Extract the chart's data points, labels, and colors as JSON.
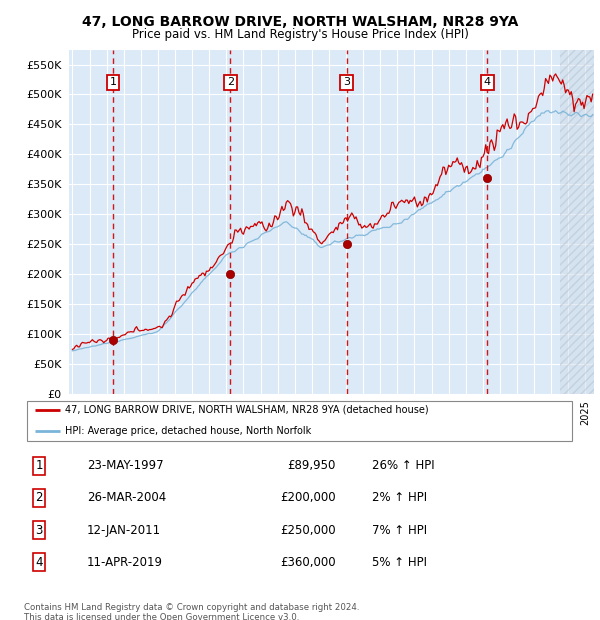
{
  "title": "47, LONG BARROW DRIVE, NORTH WALSHAM, NR28 9YA",
  "subtitle": "Price paid vs. HM Land Registry's House Price Index (HPI)",
  "ylim": [
    0,
    575000
  ],
  "yticks": [
    0,
    50000,
    100000,
    150000,
    200000,
    250000,
    300000,
    350000,
    400000,
    450000,
    500000,
    550000
  ],
  "xlim_start": 1994.8,
  "xlim_end": 2025.5,
  "background_color": "#dce9f7",
  "grid_color": "#ffffff",
  "sale_markers": [
    {
      "label": "1",
      "date_num": 1997.38,
      "price": 89950
    },
    {
      "label": "2",
      "date_num": 2004.23,
      "price": 200000
    },
    {
      "label": "3",
      "date_num": 2011.04,
      "price": 250000
    },
    {
      "label": "4",
      "date_num": 2019.27,
      "price": 360000
    }
  ],
  "legend_line1": "47, LONG BARROW DRIVE, NORTH WALSHAM, NR28 9YA (detached house)",
  "legend_line2": "HPI: Average price, detached house, North Norfolk",
  "table_rows": [
    {
      "num": "1",
      "date": "23-MAY-1997",
      "price": "£89,950",
      "hpi": "26% ↑ HPI"
    },
    {
      "num": "2",
      "date": "26-MAR-2004",
      "price": "£200,000",
      "hpi": "2% ↑ HPI"
    },
    {
      "num": "3",
      "date": "12-JAN-2011",
      "price": "£250,000",
      "hpi": "7% ↑ HPI"
    },
    {
      "num": "4",
      "date": "11-APR-2019",
      "price": "£360,000",
      "hpi": "5% ↑ HPI"
    }
  ],
  "footnote": "Contains HM Land Registry data © Crown copyright and database right 2024.\nThis data is licensed under the Open Government Licence v3.0.",
  "hpi_color": "#7ab4d8",
  "price_color": "#cc0000",
  "marker_color": "#aa0000",
  "dashed_color": "#cc0000",
  "hatch_start": 2023.5
}
